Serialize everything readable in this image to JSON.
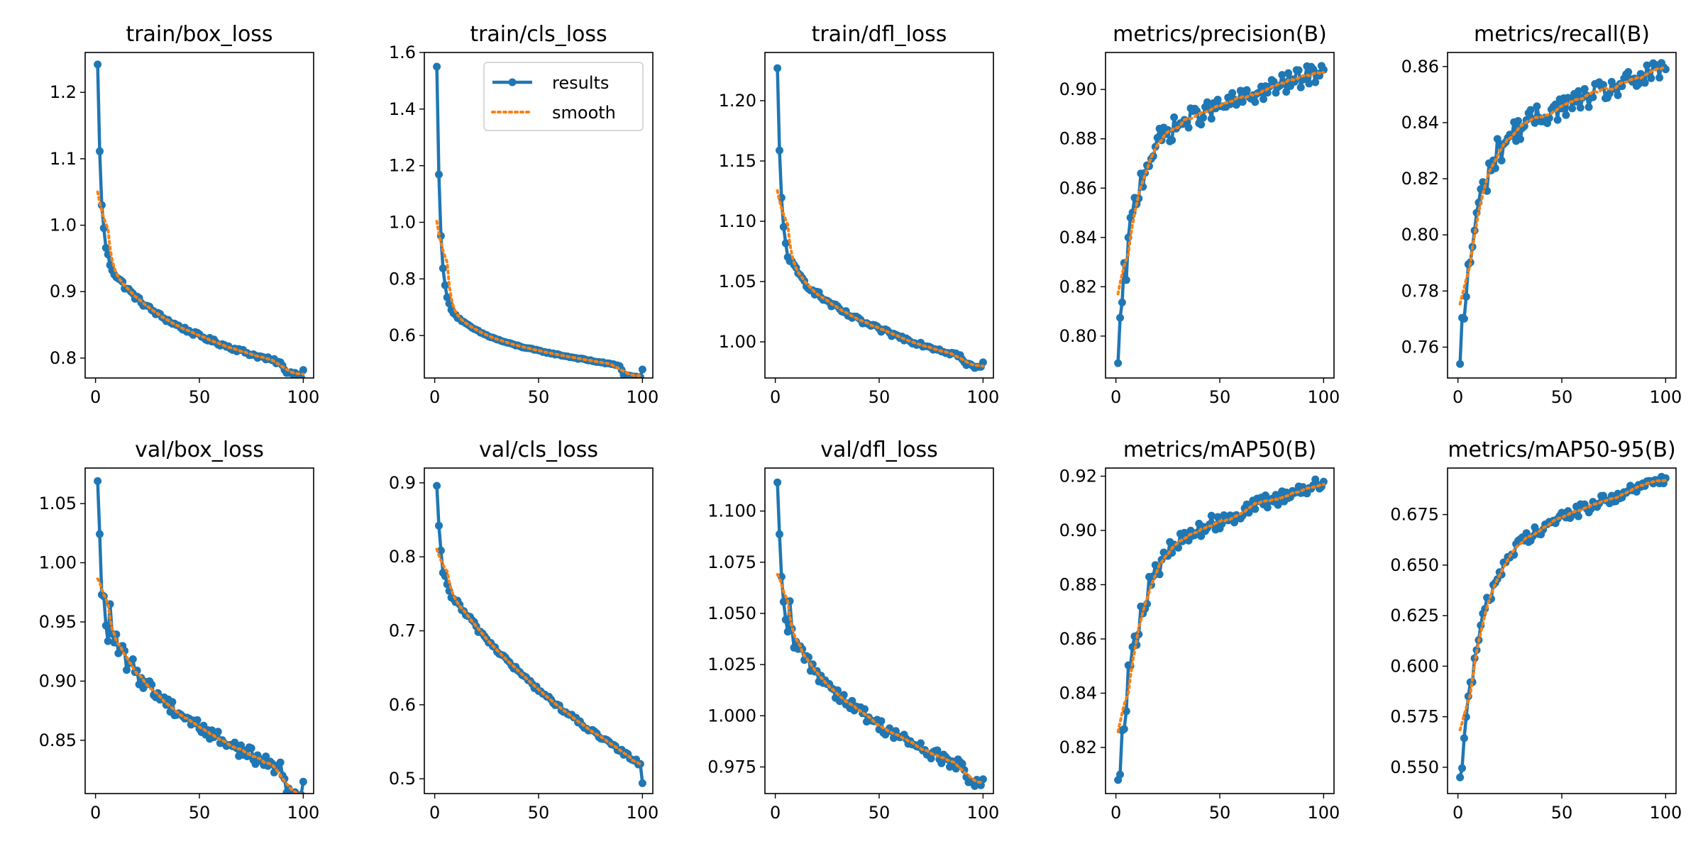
{
  "chart_data": [
    {
      "type": "line",
      "title": "train/box_loss",
      "xlim": [
        -5,
        105
      ],
      "ylim": [
        0.77,
        1.26
      ],
      "xticks": [
        0,
        50,
        100
      ],
      "yticks": [
        0.8,
        0.9,
        1.0,
        1.1,
        1.2
      ],
      "decimals": 1,
      "legend": false,
      "curve": {
        "start": 1.242,
        "end": 0.782,
        "shape": "loss",
        "k": 0.6,
        "tau": 7,
        "noise": 0.003,
        "drop_at": 90,
        "drop": 0.01,
        "spikes": []
      },
      "series": [
        {
          "name": "results",
          "color": "#1f77b4"
        },
        {
          "name": "smooth",
          "color": "#ff7f0e"
        }
      ]
    },
    {
      "type": "line",
      "title": "train/cls_loss",
      "xlim": [
        -5,
        105
      ],
      "ylim": [
        0.45,
        1.6
      ],
      "xticks": [
        0,
        50,
        100
      ],
      "yticks": [
        0.6,
        0.8,
        1.0,
        1.2,
        1.4,
        1.6
      ],
      "decimals": 1,
      "legend": true,
      "legend_position": "upper right",
      "curve": {
        "start": 1.55,
        "end": 0.48,
        "shape": "loss",
        "k": 0.75,
        "tau": 5,
        "noise": 0.002,
        "drop_at": 90,
        "drop": 0.03,
        "spikes": []
      },
      "series": [
        {
          "name": "results",
          "color": "#1f77b4"
        },
        {
          "name": "smooth",
          "color": "#ff7f0e"
        }
      ]
    },
    {
      "type": "line",
      "title": "train/dfl_loss",
      "xlim": [
        -5,
        105
      ],
      "ylim": [
        0.97,
        1.24
      ],
      "xticks": [
        0,
        50,
        100
      ],
      "yticks": [
        1.0,
        1.05,
        1.1,
        1.15,
        1.2
      ],
      "decimals": 2,
      "legend": false,
      "curve": {
        "start": 1.227,
        "end": 0.983,
        "shape": "loss",
        "k": 0.6,
        "tau": 7,
        "noise": 0.002,
        "drop_at": 90,
        "drop": 0.006,
        "spikes": []
      },
      "series": [
        {
          "name": "results",
          "color": "#1f77b4"
        },
        {
          "name": "smooth",
          "color": "#ff7f0e"
        }
      ]
    },
    {
      "type": "line",
      "title": "metrics/precision(B)",
      "xlim": [
        -5,
        105
      ],
      "ylim": [
        0.783,
        0.915
      ],
      "xticks": [
        0,
        50,
        100
      ],
      "yticks": [
        0.8,
        0.82,
        0.84,
        0.86,
        0.88,
        0.9
      ],
      "decimals": 2,
      "legend": false,
      "curve": {
        "start": 0.789,
        "end": 0.908,
        "shape": "metric",
        "k": 0.6,
        "tau": 7,
        "noise": 0.004,
        "drop_at": 0,
        "drop": 0,
        "spikes": []
      },
      "series": [
        {
          "name": "results",
          "color": "#1f77b4"
        },
        {
          "name": "smooth",
          "color": "#ff7f0e"
        }
      ]
    },
    {
      "type": "line",
      "title": "metrics/recall(B)",
      "xlim": [
        -5,
        105
      ],
      "ylim": [
        0.749,
        0.865
      ],
      "xticks": [
        0,
        50,
        100
      ],
      "yticks": [
        0.76,
        0.78,
        0.8,
        0.82,
        0.84,
        0.86
      ],
      "decimals": 2,
      "legend": false,
      "curve": {
        "start": 0.754,
        "end": 0.859,
        "shape": "metric",
        "k": 0.6,
        "tau": 8,
        "noise": 0.004,
        "drop_at": 0,
        "drop": 0,
        "spikes": []
      },
      "series": [
        {
          "name": "results",
          "color": "#1f77b4"
        },
        {
          "name": "smooth",
          "color": "#ff7f0e"
        }
      ]
    },
    {
      "type": "line",
      "title": "val/box_loss",
      "xlim": [
        -5,
        105
      ],
      "ylim": [
        0.805,
        1.08
      ],
      "xticks": [
        0,
        50,
        100
      ],
      "yticks": [
        0.85,
        0.9,
        0.95,
        1.0,
        1.05
      ],
      "decimals": 2,
      "legend": false,
      "curve": {
        "start": 1.069,
        "end": 0.815,
        "shape": "loss",
        "k": 0.45,
        "tau": 10,
        "noise": 0.006,
        "drop_at": 91,
        "drop": 0.015,
        "spikes": [
          [
            7,
            0.965
          ],
          [
            8,
            0.94
          ]
        ]
      },
      "series": [
        {
          "name": "results",
          "color": "#1f77b4"
        },
        {
          "name": "smooth",
          "color": "#ff7f0e"
        }
      ]
    },
    {
      "type": "line",
      "title": "val/cls_loss",
      "xlim": [
        -5,
        105
      ],
      "ylim": [
        0.48,
        0.92
      ],
      "xticks": [
        0,
        50,
        100
      ],
      "yticks": [
        0.5,
        0.6,
        0.7,
        0.8,
        0.9
      ],
      "decimals": 1,
      "legend": false,
      "curve": {
        "start": 0.896,
        "end": 0.494,
        "shape": "loss",
        "k": 0.3,
        "tau": 18,
        "noise": 0.003,
        "drop_at": 0,
        "drop": 0,
        "spikes": []
      },
      "series": [
        {
          "name": "results",
          "color": "#1f77b4"
        },
        {
          "name": "smooth",
          "color": "#ff7f0e"
        }
      ]
    },
    {
      "type": "line",
      "title": "val/dfl_loss",
      "xlim": [
        -5,
        105
      ],
      "ylim": [
        0.962,
        1.121
      ],
      "xticks": [
        0,
        50,
        100
      ],
      "yticks": [
        0.975,
        1.0,
        1.025,
        1.05,
        1.075,
        1.1
      ],
      "decimals": 3,
      "legend": false,
      "curve": {
        "start": 1.114,
        "end": 0.969,
        "shape": "loss",
        "k": 0.45,
        "tau": 10,
        "noise": 0.003,
        "drop_at": 91,
        "drop": 0.004,
        "spikes": [
          [
            7,
            1.056
          ]
        ]
      },
      "series": [
        {
          "name": "results",
          "color": "#1f77b4"
        },
        {
          "name": "smooth",
          "color": "#ff7f0e"
        }
      ]
    },
    {
      "type": "line",
      "title": "metrics/mAP50(B)",
      "xlim": [
        -5,
        105
      ],
      "ylim": [
        0.803,
        0.923
      ],
      "xticks": [
        0,
        50,
        100
      ],
      "yticks": [
        0.82,
        0.84,
        0.86,
        0.88,
        0.9,
        0.92
      ],
      "decimals": 2,
      "legend": false,
      "curve": {
        "start": 0.808,
        "end": 0.918,
        "shape": "metric",
        "k": 0.55,
        "tau": 9,
        "noise": 0.003,
        "drop_at": 0,
        "drop": 0,
        "spikes": [
          [
            9,
            0.861
          ]
        ]
      },
      "series": [
        {
          "name": "results",
          "color": "#1f77b4"
        },
        {
          "name": "smooth",
          "color": "#ff7f0e"
        }
      ]
    },
    {
      "type": "line",
      "title": "metrics/mAP50-95(B)",
      "xlim": [
        -5,
        105
      ],
      "ylim": [
        0.537,
        0.698
      ],
      "xticks": [
        0,
        50,
        100
      ],
      "yticks": [
        0.55,
        0.575,
        0.6,
        0.625,
        0.65,
        0.675
      ],
      "decimals": 3,
      "legend": false,
      "curve": {
        "start": 0.545,
        "end": 0.693,
        "shape": "metric",
        "k": 0.5,
        "tau": 10,
        "noise": 0.003,
        "drop_at": 0,
        "drop": 0,
        "spikes": [
          [
            9,
            0.608
          ]
        ]
      },
      "series": [
        {
          "name": "results",
          "color": "#1f77b4"
        },
        {
          "name": "smooth",
          "color": "#ff7f0e"
        }
      ]
    }
  ]
}
